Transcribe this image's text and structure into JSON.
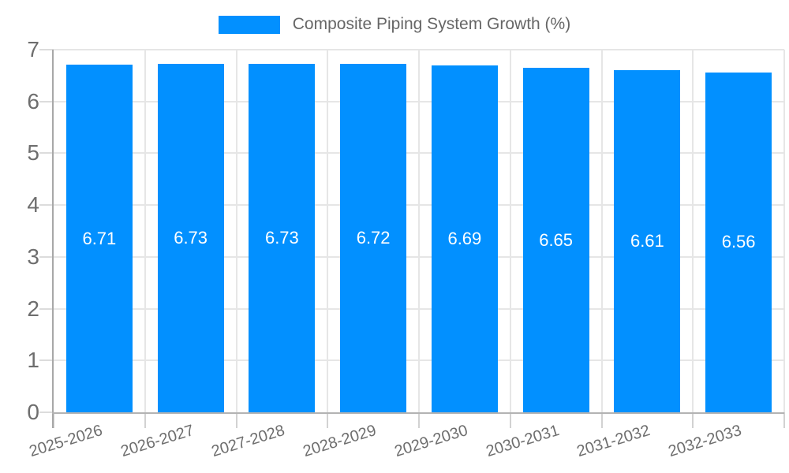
{
  "chart_data": {
    "type": "bar",
    "title": "Composite Piping System Growth (%)",
    "xlabel": "",
    "ylabel": "",
    "categories": [
      "2025-2026",
      "2026-2027",
      "2027-2028",
      "2028-2029",
      "2029-2030",
      "2030-2031",
      "2031-2032",
      "2032-2033"
    ],
    "series": [
      {
        "name": "Composite Piping System Growth (%)",
        "values": [
          6.71,
          6.73,
          6.73,
          6.72,
          6.69,
          6.65,
          6.61,
          6.56
        ]
      }
    ],
    "bar_labels": [
      "6.71",
      "6.73",
      "6.73",
      "6.72",
      "6.69",
      "6.65",
      "6.61",
      "6.56"
    ],
    "ylim": [
      0,
      7
    ],
    "yticks": [
      0,
      1,
      2,
      3,
      4,
      5,
      6,
      7
    ],
    "grid": true,
    "legend_position": "top-center",
    "bar_label_position": "middle-of-bar"
  },
  "legend": {
    "items": [
      {
        "label": "Composite Piping System Growth (%)",
        "color": "#0290ff"
      }
    ]
  },
  "colors": {
    "bar": "#0290ff",
    "title_text": "#666666",
    "tick_text": "#6e6e6e",
    "bar_label_text": "#ffffff",
    "grid": "#e6e6e6",
    "y_axis_line": "#a8a8a8",
    "x_axis_line": "#b3b3b3",
    "x_tick": "#d2d2d2",
    "y_tick": "#dcdcdc",
    "background": "#ffffff"
  }
}
